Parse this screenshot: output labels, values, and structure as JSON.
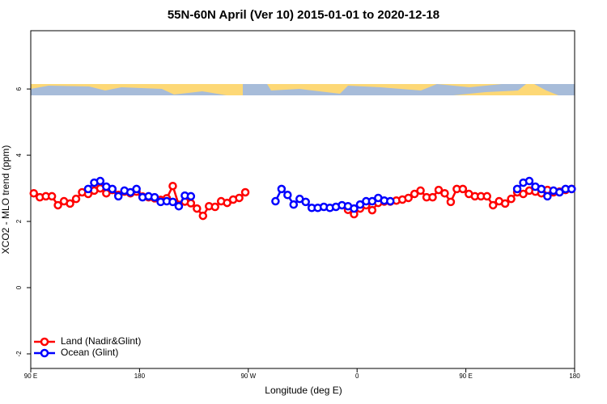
{
  "chart_data": {
    "type": "line",
    "title": "55N-60N April (Ver 10)   2015-01-01 to 2020-12-18",
    "x_label": "Longitude (deg E)",
    "y_label": "XCO2 - MLO trend (ppm)",
    "xlim": [
      90,
      540
    ],
    "ylim": [
      -2.44,
      7.76
    ],
    "xticks": [
      {
        "value": 90,
        "label": "90 E"
      },
      180,
      {
        "value": 270,
        "label": "90 W"
      },
      {
        "value": 360,
        "label": "0"
      },
      {
        "value": 450,
        "label": "90 E"
      },
      {
        "value": 540,
        "label": "180"
      }
    ],
    "yticks": [
      -2,
      0,
      2,
      4,
      6
    ],
    "legend": "bottom-left",
    "x": [
      92.5,
      97.5,
      102.5,
      107.5,
      112.5,
      117.5,
      122.5,
      127.5,
      132.5,
      137.5,
      142.5,
      147.5,
      152.5,
      157.5,
      162.5,
      167.5,
      172.5,
      177.5,
      182.5,
      187.5,
      192.5,
      197.5,
      202.5,
      207.5,
      212.5,
      217.5,
      222.5,
      227.5,
      232.5,
      237.5,
      242.5,
      247.5,
      252.5,
      257.5,
      262.5,
      267.5,
      272.5,
      277.5,
      282.5,
      287.5,
      292.5,
      297.5,
      302.5,
      307.5,
      312.5,
      317.5,
      322.5,
      327.5,
      332.5,
      337.5,
      342.5,
      347.5,
      352.5,
      357.5,
      362.5,
      367.5,
      372.5,
      377.5,
      382.5,
      387.5,
      392.5,
      397.5,
      402.5,
      407.5,
      412.5,
      417.5,
      422.5,
      427.5,
      432.5,
      437.5,
      442.5,
      447.5,
      452.5,
      457.5,
      462.5,
      467.5,
      472.5,
      477.5,
      482.5,
      487.5,
      492.5,
      497.5,
      502.5,
      507.5,
      512.5,
      517.5,
      522.5,
      527.5,
      532.5,
      537.5
    ],
    "series": [
      {
        "name": "Land (Nadir&Glint)",
        "color": "#ff0000",
        "values": [
          2.85,
          2.73,
          2.76,
          2.76,
          2.49,
          2.61,
          2.54,
          2.68,
          2.88,
          2.83,
          2.93,
          3.0,
          2.85,
          2.95,
          2.8,
          2.9,
          2.85,
          2.9,
          2.75,
          2.73,
          2.7,
          2.65,
          2.7,
          3.07,
          2.5,
          2.6,
          2.55,
          2.39,
          2.17,
          2.46,
          2.44,
          2.61,
          2.56,
          2.66,
          2.71,
          2.88,
          null,
          null,
          null,
          null,
          null,
          null,
          null,
          null,
          null,
          null,
          null,
          null,
          null,
          null,
          null,
          null,
          2.35,
          2.22,
          2.39,
          2.49,
          2.34,
          2.56,
          2.6,
          2.6,
          2.63,
          2.66,
          2.71,
          2.83,
          2.93,
          2.73,
          2.73,
          2.95,
          2.85,
          2.59,
          2.98,
          2.98,
          2.83,
          2.76,
          2.76,
          2.76,
          2.49,
          2.61,
          2.54,
          2.68,
          2.88,
          2.83,
          2.93,
          2.9,
          2.85,
          2.95,
          2.88,
          2.9,
          2.95,
          2.98
        ]
      },
      {
        "name": "Ocean (Glint)",
        "color": "#0000ff",
        "values": [
          null,
          null,
          null,
          null,
          null,
          null,
          null,
          null,
          null,
          2.98,
          3.17,
          3.22,
          3.05,
          2.98,
          2.76,
          2.93,
          2.88,
          2.98,
          2.73,
          2.76,
          2.73,
          2.59,
          2.61,
          2.59,
          2.46,
          2.78,
          2.76,
          null,
          null,
          null,
          null,
          null,
          null,
          null,
          null,
          null,
          null,
          null,
          null,
          null,
          2.61,
          2.98,
          2.8,
          2.51,
          2.68,
          2.59,
          2.41,
          2.41,
          2.44,
          2.41,
          2.44,
          2.49,
          2.46,
          2.39,
          2.51,
          2.61,
          2.61,
          2.71,
          2.63,
          2.61,
          null,
          null,
          null,
          null,
          null,
          null,
          null,
          null,
          null,
          null,
          null,
          null,
          null,
          null,
          null,
          null,
          null,
          null,
          null,
          null,
          2.98,
          3.17,
          3.22,
          3.05,
          2.98,
          2.76,
          2.93,
          2.88,
          2.98,
          2.98
        ]
      }
    ]
  }
}
